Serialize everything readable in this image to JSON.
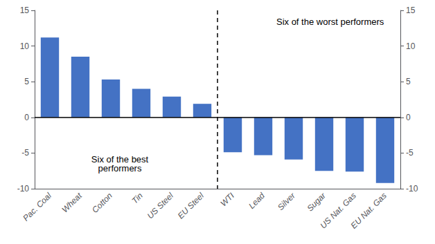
{
  "chart_data": {
    "type": "bar",
    "categories": [
      "Pac. Coal",
      "Wheat",
      "Cotton",
      "Tin",
      "US Steel",
      "EU Steel",
      "WTI",
      "Lead",
      "Silver",
      "Sugar",
      "US Nat. Gas",
      "EU Nat. Gas"
    ],
    "values": [
      11.2,
      8.5,
      5.3,
      4.0,
      2.9,
      1.9,
      -4.9,
      -5.3,
      -5.9,
      -7.5,
      -7.6,
      -9.2
    ],
    "color": "#4472c4",
    "ylim": [
      -10,
      15
    ],
    "yticks": [
      -10,
      -5,
      0,
      5,
      10,
      15
    ],
    "y2lim": [
      -10,
      15
    ],
    "y2ticks": [
      -10,
      -5,
      0,
      5,
      10,
      15
    ],
    "annotations": [
      "Six of the best\nperformers",
      "Six of the worst performers"
    ],
    "grid": false
  }
}
